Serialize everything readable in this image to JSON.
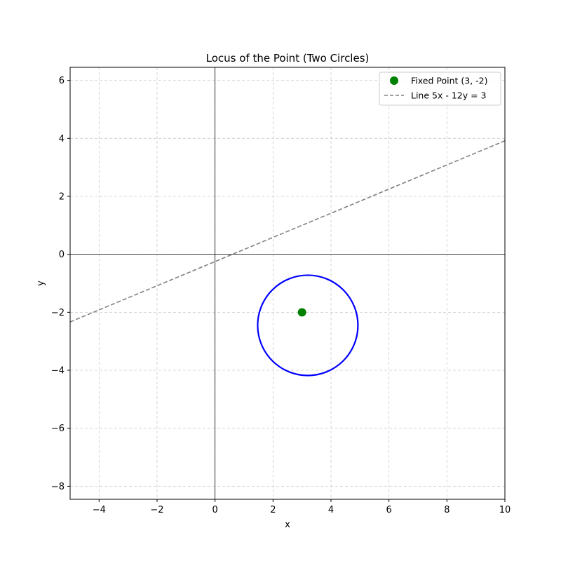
{
  "chart_data": {
    "type": "line",
    "title": "Locus of the Point (Two Circles)",
    "xlabel": "x",
    "ylabel": "y",
    "xlim": [
      -5,
      10
    ],
    "ylim": [
      -8.45,
      6.45
    ],
    "xticks": [
      -4,
      -2,
      0,
      2,
      4,
      6,
      8,
      10
    ],
    "yticks": [
      -8,
      -6,
      -4,
      -2,
      0,
      2,
      4,
      6
    ],
    "grid": true,
    "legend_position": "top-right",
    "series": [
      {
        "name": "Fixed Point (3, -2)",
        "kind": "point",
        "x": 3,
        "y": -2,
        "color": "#008000"
      },
      {
        "name": "Line 5x - 12y = 3",
        "kind": "dashed-line",
        "equation": {
          "a": 5,
          "b": -12,
          "c": 3
        },
        "color": "#808080"
      },
      {
        "kind": "circle",
        "center": [
          3.2,
          -2.45
        ],
        "radius": 1.73,
        "color": "#0000ff"
      }
    ],
    "colors": {
      "grid": "#cccccc",
      "axes_lines": "#000000"
    }
  }
}
